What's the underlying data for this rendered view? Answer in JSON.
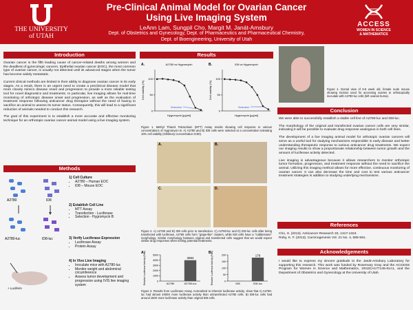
{
  "header": {
    "title_line1": "Pre-Clinical Animal Model for Ovarian Cancer",
    "title_line2": "Using Live Imaging System",
    "authors": "LeAnn Lam, Sungpil Cho, Margit M. Janát-Amsbury",
    "affiliation1": "Dept. of Obstetrics and Gynecology, Dept. of Pharmaceutics and Pharmaceutical Chemistry,",
    "affiliation2": "Dept. of Bioengineering, University of Utah",
    "logo_left_top": "THE UNIVERSITY",
    "logo_left_bottom": "of UTAH",
    "logo_right_title": "ACCESS",
    "logo_right_line1": "WOMEN IN SCIENCE",
    "logo_right_line2": "& MATHEMATICS"
  },
  "introduction": {
    "heading": "Introduction",
    "paragraphs": [
      "Ovarian cancer is the fifth leading cause of cancer-related deaths among women and the deadliest of gynecologic cancers. Epithelial ovarian cancer (EOC), the most common type of ovarian cancer, is usually not detected until its advanced stages when the tumor has become widely metastatic.",
      "Current clinical methods are limited in their ability to diagnose ovarian cancer in its early stages. As a result, there is an urgent need to create a preclinical disease model that more closely mimics disease onset and progression to provide a more reliable testing tool for novel diagnostics and treatments. In particular, live imaging allows for real-time monitoring of orthotopic disease onset and progression, as well as the evaluation of treatment response following anticancer drug therapies without the need of having to sacrifice an animal to assess its tumor status. Consequently, this will lead to a significant reduction of animals needed to conduct this research.",
      "The goal of this experiment is to establish a more accurate and effective monitoring technique for an orthotopic ovarian cancer animal model using a live imaging system."
    ]
  },
  "methods": {
    "heading": "Methods",
    "cell_labels": [
      "A2780",
      "ID8",
      "A2780-luc",
      "ID8-luc"
    ],
    "luciferin": "+ Luciferin",
    "steps": [
      {
        "number": "1)",
        "title": "Cell Culture",
        "items": [
          "A2780 – Human EOC",
          "ID8 – Mouse EOC"
        ]
      },
      {
        "number": "2)",
        "title": "Establish Cell Line",
        "items": [
          "MTT Assay",
          "Transfection - Luciferase",
          "Selection - Hygromycin B"
        ]
      },
      {
        "number": "3)",
        "title": "Verify Luciferase Expression",
        "items": [
          "Luciferase Assay",
          "Protein Assay"
        ]
      },
      {
        "number": "4)",
        "title": "In Vivo Live Imaging",
        "items": [
          "Inoculate mice with A2780-luc",
          "Monitor weight and abdominal circumference",
          "Assess tumor development and progression using IVIS live imaging system"
        ]
      }
    ]
  },
  "results": {
    "heading": "Results",
    "fig1": {
      "panels": [
        {
          "type": "line",
          "label": "A.",
          "title": "A2780 vs Hygromycin",
          "ylabel": "Cell viability (%)",
          "xlabel": "Hygromycin [µg/ml]",
          "annotation": "Selection",
          "color": "#222222",
          "x": [
            -1,
            -0.5,
            0,
            0.5,
            1,
            1.5,
            2,
            2.5,
            3
          ],
          "values": [
            100,
            101,
            99,
            97,
            92,
            80,
            45,
            10,
            3
          ],
          "xlim": [
            -1.2,
            3.2
          ],
          "ylim": [
            0,
            130
          ],
          "yticks": [
            0,
            50,
            100
          ]
        },
        {
          "type": "line",
          "label": "B.",
          "title": "ID8 vs Hygromycin",
          "ylabel": "Cell viability (%)",
          "xlabel": "Hygromycin [µg/ml]",
          "annotation": "Selection",
          "color": "#222222",
          "x": [
            -1,
            -0.5,
            0,
            0.5,
            1,
            1.5,
            2,
            2.5,
            3
          ],
          "values": [
            100,
            99,
            98,
            96,
            90,
            75,
            50,
            15,
            5
          ],
          "xlim": [
            -1.2,
            3.2
          ],
          "ylim": [
            0,
            130
          ],
          "yticks": [
            0,
            50,
            100
          ]
        }
      ],
      "caption": "Figure 1. Methyl Thiazol Tetrazolium (MTT) Assay results showing cell response to various concentrations of Hygromycin B. A) A2780 and B) ID8 cells were selected at a concentration tolerating 10% cell viability (Inhibitory Concentration IC90)."
    },
    "fig2": {
      "panel_labels": [
        "A.",
        "B.",
        "C.",
        "D."
      ],
      "caption": "Figure 2. A) A2780 and B) ID8 cells prior to transfection. C) A2780-luc and D) ID8-luc cells after being transfected with luciferase. A2780 cells form \"grape-like\" clusters, while ID8 cells have a \"cobblestone\" morphology. Similar morphology between original and transfected cells suggest that we would expect similar drug responses when testing potential treatments."
    },
    "fig3": {
      "panels": [
        {
          "type": "bar",
          "label": "A.",
          "ylabel": "Relative Luciferase Activity (Fold)",
          "categories": [
            "A2780",
            "A2780-luc"
          ],
          "values": [
            1,
            3984
          ],
          "value_labels": [
            null,
            "3984"
          ],
          "color": "#555555",
          "ylim": [
            0,
            5000
          ],
          "yticks": [
            0,
            1000,
            2000,
            3000,
            4000,
            5000
          ]
        },
        {
          "type": "bar",
          "label": "B.",
          "ylabel": "Relative Luciferase Activity (Fold)",
          "categories": [
            "ID8",
            "ID8-luc"
          ],
          "values": [
            1,
            179
          ],
          "value_labels": [
            null,
            "179"
          ],
          "color": "#555555",
          "ylim": [
            0,
            200
          ],
          "yticks": [
            0,
            50,
            100,
            150,
            200
          ]
        }
      ],
      "caption": "Figure 3. Results from Luciferase Assay, normalized to inherent luciferase activity, show that A) A2780-luc had almost 4000X more luciferase activity than untransfected A2780 cells. B) ID8-luc cells had around 180X more luciferase activity than original ID8 cells."
    },
    "fig4": {
      "caption": "Figure 4. Dorsal view of 6-8 week old, female nude mouse showing incision used for accessing ovaries to orthotopically inoculate with A2780-luc cells (left ovarian bursa)."
    }
  },
  "conclusion": {
    "heading": "Conclusion",
    "paragraphs": [
      "We were able to successfully establish a stable cell line of A2780-luc and ID8-luc.",
      "The morphology of the original and transfected ovarian cancer cells are very similar, indicating it will be possible to evaluate drug response analogous in both cell lines.",
      "The development of a live imaging animal model for orthotopic ovarian cancers will serve as a useful tool for studying mechanisms responsible in early disease and better understanding therapeutic response to various anticancer drug treatments. We expect our imaging results to show a proportionate relationship between tumor growth and the amount of luciferase activity detected.",
      "Live imaging is advantageous because it allows researchers to monitor orthotopic tumor formation, progression, and treatment response without the need to sacrifice the animal. Utilizing this imaging method allows for more effective, continuous monitoring of ovarian cancer. It can also decrease the time and cost to test various anticancer treatment strategies in addition to studying underlying mechanisms."
    ]
  },
  "references": {
    "heading": "References",
    "items": [
      "Cho, S. (2013). Anticancer Research 33, 1317-1324.",
      "Roby, K. F. (2013). Carcinogenesis Vol. 21 No. 4, 585-591."
    ]
  },
  "acknowledgements": {
    "heading": "Acknowledgements",
    "text": "I would like to express my sincere gratitude to the Janát-Amsbury Laboratory for supporting this research. This work was funded by Rosemary Gray and the ACCESS Program for Women in Science and Mathematics, 1R43CA177145-01A1, and the Department of Obstetrics and Gynecology at the University of Utah."
  }
}
